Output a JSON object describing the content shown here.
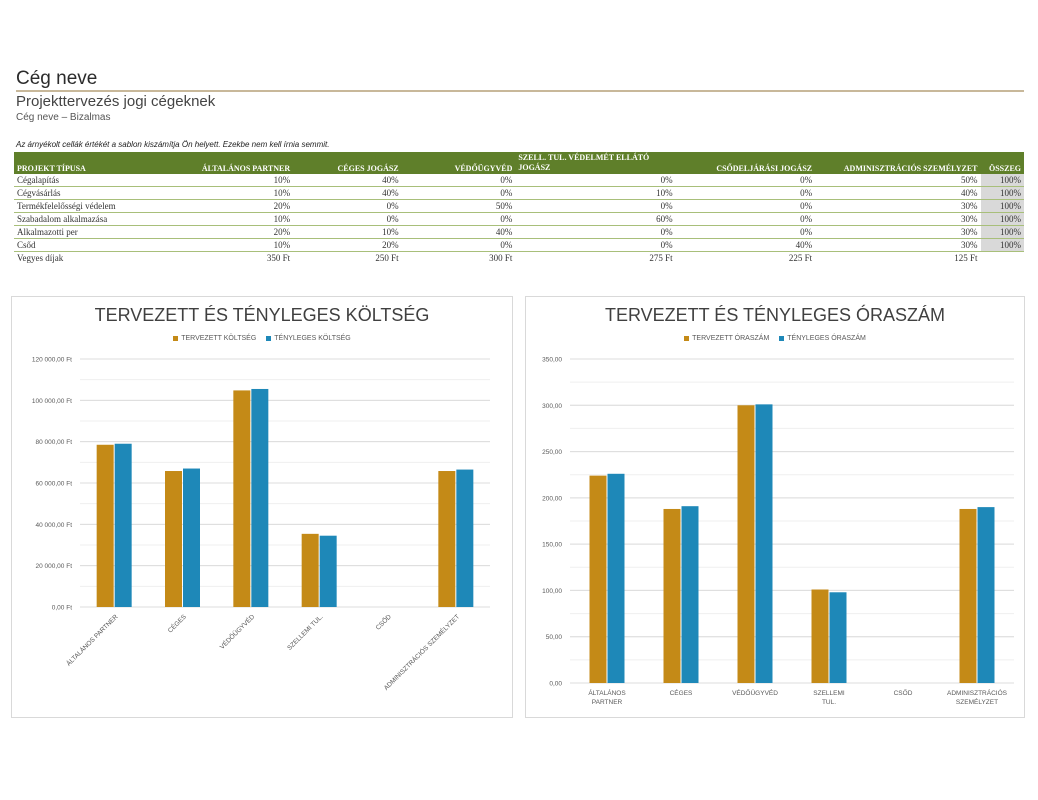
{
  "header": {
    "company": "Cég neve",
    "subtitle": "Projekttervezés jogi cégeknek",
    "confidential": "Cég neve – Bizalmas",
    "note": "Az árnyékolt cellák értékét a sablon kiszámítja Ön helyett. Ezekbe nem kell írnia semmit."
  },
  "table": {
    "headers": [
      "PROJEKT TÍPUSA",
      "ÁLTALÁNOS PARTNER",
      "CÉGES JOGÁSZ",
      "VÉDŐÜGYVÉD",
      "SZELL. TUL. VÉDELMÉT ELLÁTÓ",
      "JOGÁSZ",
      "CSŐDELJÁRÁSI JOGÁSZ",
      "ADMINISZTRÁCIÓS SZEMÉLYZET",
      "ÖSSZEG"
    ],
    "rows": [
      {
        "type": "Cégalapítás",
        "vals": [
          "10%",
          "40%",
          "0%",
          "0%",
          "0%",
          "50%"
        ],
        "total": "100%"
      },
      {
        "type": "Cégvásárlás",
        "vals": [
          "10%",
          "40%",
          "0%",
          "10%",
          "0%",
          "40%"
        ],
        "total": "100%"
      },
      {
        "type": "Termékfelelősségi védelem",
        "vals": [
          "20%",
          "0%",
          "50%",
          "0%",
          "0%",
          "30%"
        ],
        "total": "100%"
      },
      {
        "type": "Szabadalom alkalmazása",
        "vals": [
          "10%",
          "0%",
          "0%",
          "60%",
          "0%",
          "30%"
        ],
        "total": "100%"
      },
      {
        "type": "Alkalmazotti per",
        "vals": [
          "20%",
          "10%",
          "40%",
          "0%",
          "0%",
          "30%"
        ],
        "total": "100%"
      },
      {
        "type": "Csőd",
        "vals": [
          "10%",
          "20%",
          "0%",
          "0%",
          "40%",
          "30%"
        ],
        "total": "100%"
      }
    ],
    "fees": {
      "label": "Vegyes díjak",
      "vals": [
        "350 Ft",
        "250 Ft",
        "300 Ft",
        "275 Ft",
        "225 Ft",
        "125 Ft"
      ]
    }
  },
  "chart_data": [
    {
      "type": "bar",
      "title": "TERVEZETT ÉS TÉNYLEGES KÖLTSÉG",
      "categories": [
        "ÁLTALÁNOS PARTNER",
        "CÉGES",
        "VÉDŐÜGYVÉD",
        "SZELLEMI TUL.",
        "CSŐD",
        "ADMINISZTRÁCIÓS SZEMÉLYZET"
      ],
      "series": [
        {
          "name": "TERVEZETT KÖLTSÉG",
          "color": "#c48a17",
          "values": [
            78500,
            65800,
            104800,
            35400,
            0,
            65800
          ]
        },
        {
          "name": "TÉNYLEGES KÖLTSÉG",
          "color": "#1e88b8",
          "values": [
            79000,
            67000,
            105500,
            34500,
            0,
            66500
          ]
        }
      ],
      "yticks": [
        "0,00 Ft",
        "20 000,00 Ft",
        "40 000,00 Ft",
        "60 000,00 Ft",
        "80 000,00 Ft",
        "100 000,00 Ft",
        "120 000,00 Ft"
      ],
      "ylim": [
        0,
        120000
      ],
      "xlabel_style": "rotated"
    },
    {
      "type": "bar",
      "title": "TERVEZETT ÉS TÉNYLEGES ÓRASZÁM",
      "categories": [
        "ÁLTALÁNOS PARTNER",
        "CÉGES",
        "VÉDŐÜGYVÉD",
        "SZELLEMI TUL.",
        "CSŐD",
        "ADMINISZTRÁCIÓS SZEMÉLYZET"
      ],
      "series": [
        {
          "name": "TERVEZETT ÓRASZÁM",
          "color": "#c48a17",
          "values": [
            224,
            188,
            300,
            101,
            0,
            188
          ]
        },
        {
          "name": "TÉNYLEGES ÓRASZÁM",
          "color": "#1e88b8",
          "values": [
            226,
            191,
            301,
            98,
            0,
            190
          ]
        }
      ],
      "yticks": [
        "0,00",
        "50,00",
        "100,00",
        "150,00",
        "200,00",
        "250,00",
        "300,00",
        "350,00"
      ],
      "ylim": [
        0,
        350
      ],
      "xlabel_style": "wrapped"
    }
  ]
}
